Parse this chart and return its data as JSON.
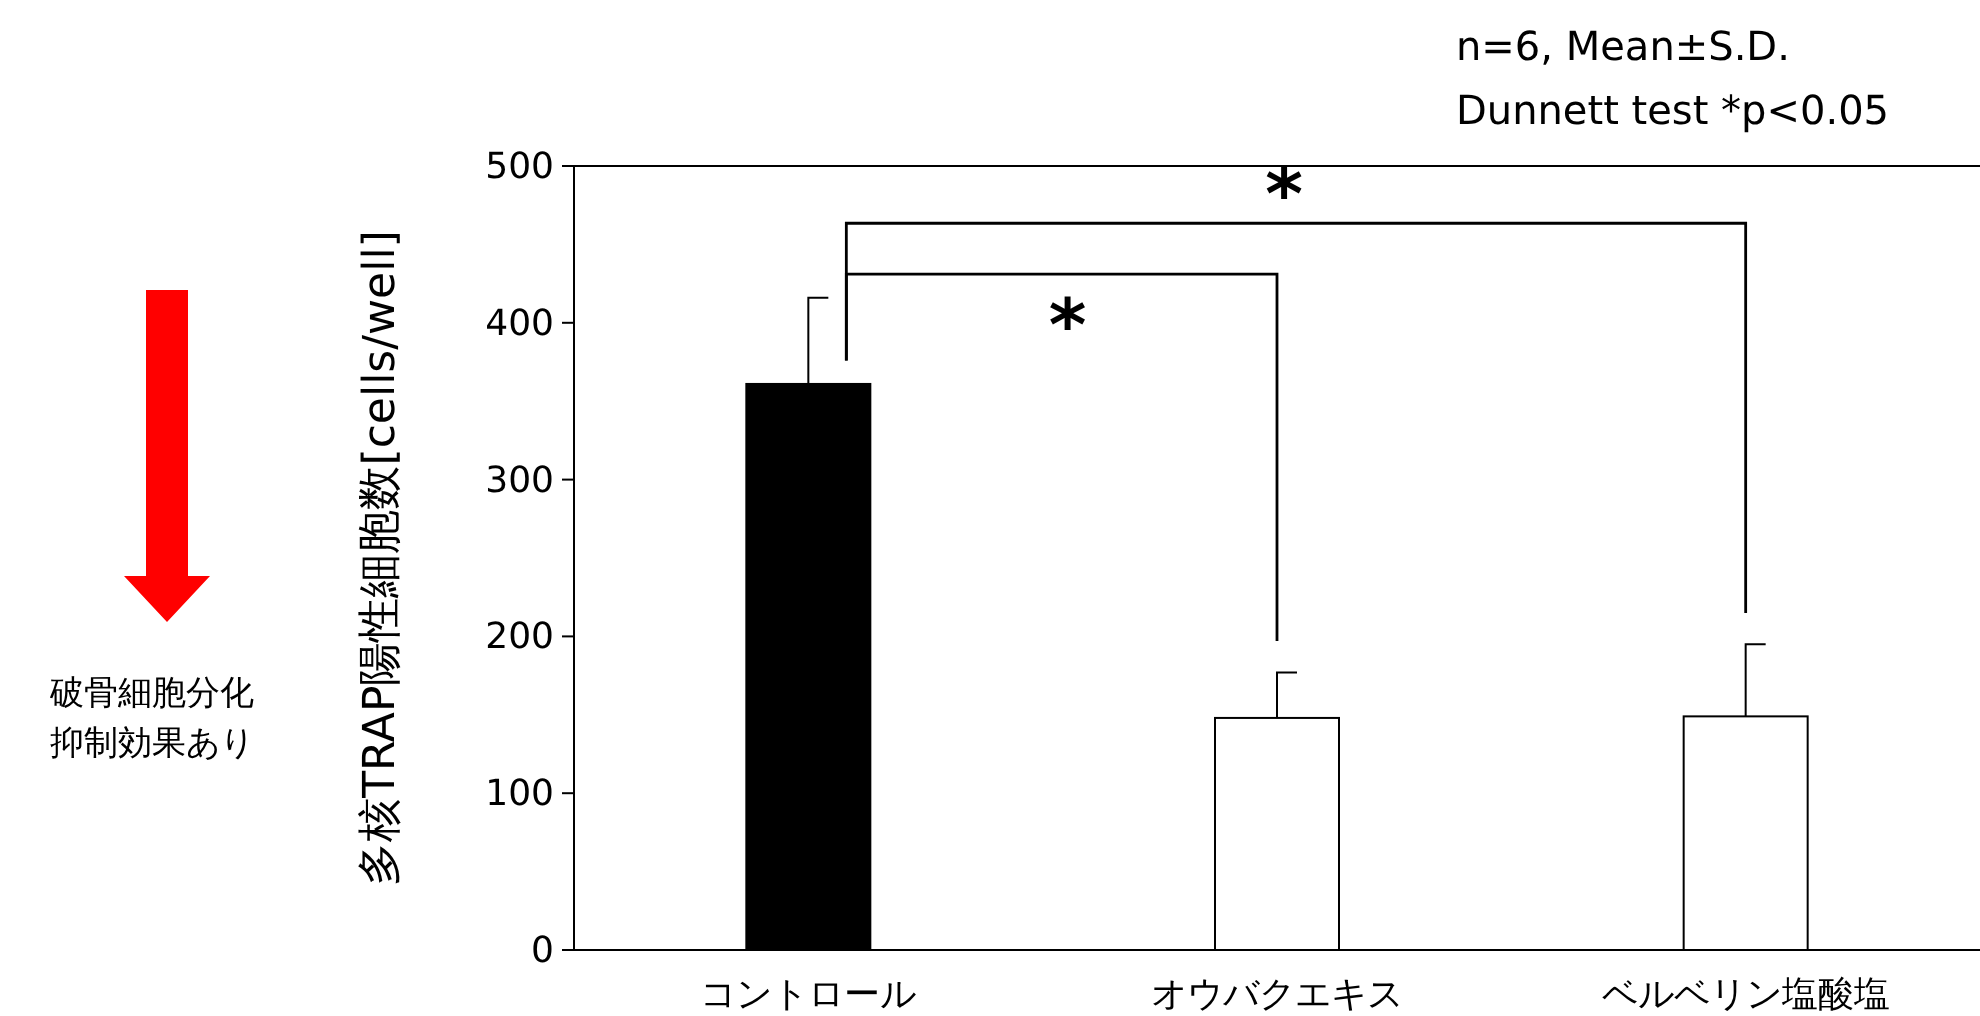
{
  "chart_data": {
    "type": "bar",
    "ylabel": "多核TRAP陽性細胞数[cells/well]",
    "categories": [
      "コントロール",
      "オウバクエキス",
      "ベルベリン塩酸塩"
    ],
    "values": [
      361,
      148,
      149
    ],
    "colors": [
      "#000000",
      "#ffffff",
      "#ffffff"
    ],
    "errors": [
      [
        361,
        416
      ],
      [
        148,
        177
      ],
      [
        149,
        195
      ]
    ],
    "ylim": [
      0,
      500
    ],
    "yticks": [
      0,
      100,
      200,
      300,
      400,
      500
    ],
    "annotations": [
      "n=6, Mean±S.D.",
      "Dunnett test *p<0.05",
      "破骨細胞分化",
      "抑制効果あり",
      "*",
      "*"
    ]
  }
}
